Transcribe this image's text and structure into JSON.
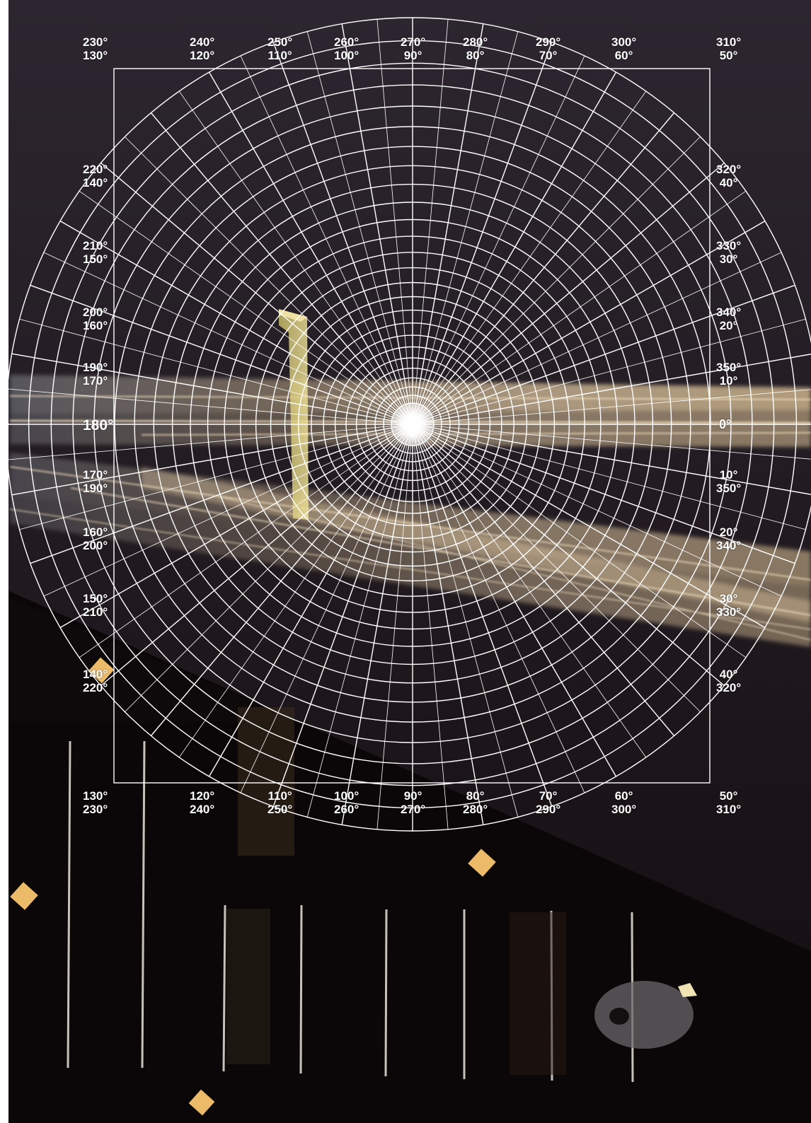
{
  "image": {
    "description_icon": "photograph-with-polar-grid-overlay",
    "colors": {
      "sky_top": "#2a232b",
      "sky_mid": "#1c161b",
      "ground": "#0a0707",
      "streak": "#f2d6a8",
      "grid": "#ffffff",
      "gold": "#e9b867"
    }
  },
  "labels": {
    "top": [
      {
        "top": "230°",
        "bottom": "130°"
      },
      {
        "top": "240°",
        "bottom": "120°"
      },
      {
        "top": "250°",
        "bottom": "110°"
      },
      {
        "top": "260°",
        "bottom": "100°"
      },
      {
        "top": "270°",
        "bottom": "90°"
      },
      {
        "top": "280°",
        "bottom": "80°"
      },
      {
        "top": "290°",
        "bottom": "70°"
      },
      {
        "top": "300°",
        "bottom": "60°"
      },
      {
        "top": "310°",
        "bottom": "50°"
      }
    ],
    "bottom": [
      {
        "top": "130°",
        "bottom": "230°"
      },
      {
        "top": "120°",
        "bottom": "240°"
      },
      {
        "top": "110°",
        "bottom": "250°"
      },
      {
        "top": "100°",
        "bottom": "260°"
      },
      {
        "top": "90°",
        "bottom": "270°"
      },
      {
        "top": "80°",
        "bottom": "280°"
      },
      {
        "top": "70°",
        "bottom": "290°"
      },
      {
        "top": "60°",
        "bottom": "300°"
      },
      {
        "top": "50°",
        "bottom": "310°"
      }
    ],
    "left": [
      {
        "top": "220°",
        "bottom": "140°"
      },
      {
        "top": "210°",
        "bottom": "150°"
      },
      {
        "top": "200°",
        "bottom": "160°"
      },
      {
        "top": "190°",
        "bottom": "170°"
      },
      {
        "top": "170°",
        "bottom": "190°"
      },
      {
        "top": "160°",
        "bottom": "200°"
      },
      {
        "top": "150°",
        "bottom": "210°"
      },
      {
        "top": "140°",
        "bottom": "220°"
      }
    ],
    "right": [
      {
        "top": "320°",
        "bottom": "40°"
      },
      {
        "top": "330°",
        "bottom": "30°"
      },
      {
        "top": "340°",
        "bottom": "20°"
      },
      {
        "top": "350°",
        "bottom": "10°"
      },
      {
        "top": "10°",
        "bottom": "350°"
      },
      {
        "top": "20°",
        "bottom": "340°"
      },
      {
        "top": "30°",
        "bottom": "330°"
      },
      {
        "top": "40°",
        "bottom": "320°"
      }
    ],
    "left_mid": "180°",
    "right_mid": "0°"
  }
}
